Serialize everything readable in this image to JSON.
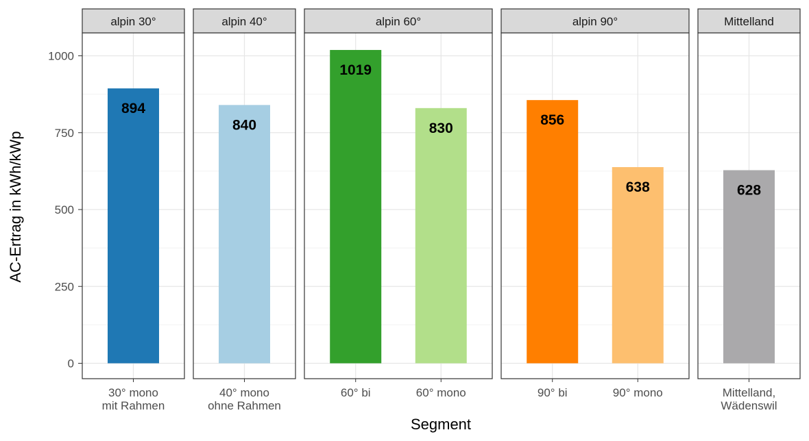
{
  "chart_data": {
    "type": "bar",
    "xlabel": "Segment",
    "ylabel": "AC-Ertrag in kWh/kWp",
    "ylim": [
      0,
      1120
    ],
    "y_ticks": [
      0,
      250,
      500,
      750,
      1000
    ],
    "grid": true,
    "legend": "none",
    "facets": [
      {
        "label": "alpin 30°",
        "bars": [
          {
            "category": [
              "30° mono",
              "mit Rahmen"
            ],
            "value": 894,
            "value_label": "894",
            "color": "#1f78b4"
          }
        ]
      },
      {
        "label": "alpin 40°",
        "bars": [
          {
            "category": [
              "40° mono",
              "ohne Rahmen"
            ],
            "value": 840,
            "value_label": "840",
            "color": "#a6cee3"
          }
        ]
      },
      {
        "label": "alpin 60°",
        "bars": [
          {
            "category": [
              "60° bi"
            ],
            "value": 1019,
            "value_label": "1019",
            "color": "#33a02c"
          },
          {
            "category": [
              "60° mono"
            ],
            "value": 830,
            "value_label": "830",
            "color": "#b2df8a"
          }
        ]
      },
      {
        "label": "alpin 90°",
        "bars": [
          {
            "category": [
              "90° bi"
            ],
            "value": 856,
            "value_label": "856",
            "color": "#ff7f00"
          },
          {
            "category": [
              "90° mono"
            ],
            "value": 638,
            "value_label": "638",
            "color": "#fdbf6f"
          }
        ]
      },
      {
        "label": "Mittelland",
        "bars": [
          {
            "category": [
              "Mittelland,",
              "Wädenswil"
            ],
            "value": 628,
            "value_label": "628",
            "color": "#aaa9ab"
          }
        ]
      }
    ]
  }
}
